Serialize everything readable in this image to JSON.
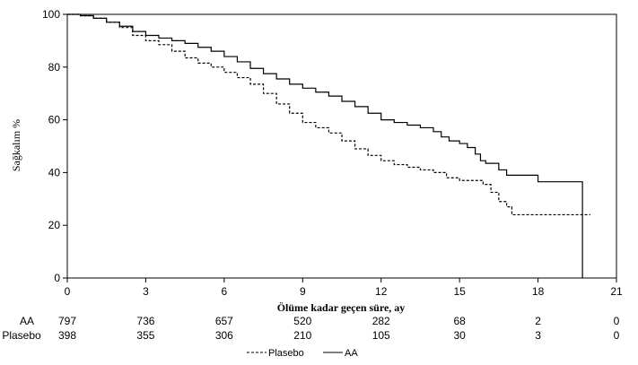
{
  "chart_data": {
    "type": "line",
    "title": "",
    "xlabel": "Ölüme kadar geçen süre, ay",
    "ylabel": "Sağkalım %",
    "xlim": [
      0,
      21
    ],
    "ylim": [
      0,
      100
    ],
    "xticks": [
      0,
      3,
      6,
      9,
      12,
      15,
      18,
      21
    ],
    "yticks": [
      0,
      20,
      40,
      60,
      80,
      100
    ],
    "grid": false,
    "legend": "bottom",
    "series": [
      {
        "name": "AA",
        "style": "solid",
        "color": "#000000",
        "x": [
          0,
          0.5,
          1,
          1.5,
          2,
          2.5,
          3,
          3.5,
          4,
          4.5,
          5,
          5.5,
          6,
          6.5,
          7,
          7.5,
          8,
          8.5,
          9,
          9.5,
          10,
          10.5,
          11,
          11.5,
          12,
          12.5,
          13,
          13.5,
          14,
          14.3,
          14.6,
          15,
          15.3,
          15.6,
          15.8,
          16,
          16.2,
          16.5,
          16.8,
          17,
          18,
          19,
          19.7,
          19.7
        ],
        "y": [
          100,
          99.5,
          98.5,
          97,
          95.5,
          93.5,
          92,
          91,
          90,
          89,
          87.5,
          86,
          84,
          82,
          79.5,
          77.5,
          75.5,
          73.5,
          72,
          70.5,
          69,
          67,
          65,
          62.5,
          60,
          59,
          58,
          57,
          55.5,
          53.5,
          52,
          51,
          49.5,
          47,
          44.5,
          43.5,
          43.5,
          41,
          39,
          39,
          36.5,
          36.5,
          36.5,
          0
        ]
      },
      {
        "name": "Plasebo",
        "style": "dashed",
        "color": "#000000",
        "x": [
          0,
          0.5,
          1,
          1.5,
          2,
          2.5,
          3,
          3.5,
          4,
          4.5,
          5,
          5.5,
          6,
          6.5,
          7,
          7.5,
          8,
          8.5,
          9,
          9.5,
          10,
          10.5,
          11,
          11.5,
          12,
          12.5,
          13,
          13.5,
          14,
          14.5,
          15,
          15.5,
          15.9,
          16.2,
          16.5,
          16.8,
          17,
          18,
          19,
          20
        ],
        "y": [
          100,
          99.5,
          98.5,
          97,
          95,
          92,
          90,
          88.5,
          86,
          83.5,
          81.5,
          80,
          78,
          76,
          73.5,
          70,
          66,
          62.5,
          59,
          57,
          55,
          52,
          49,
          46.5,
          44.5,
          43,
          42,
          41,
          40,
          38,
          37,
          37,
          35.5,
          32.5,
          29,
          27,
          24,
          24,
          24,
          24
        ]
      }
    ],
    "risk_table": {
      "times": [
        0,
        3,
        6,
        9,
        12,
        15,
        18,
        21
      ],
      "rows": [
        {
          "label": "AA",
          "values": [
            "797",
            "736",
            "657",
            "520",
            "282",
            "68",
            "2",
            "0"
          ]
        },
        {
          "label": "Plasebo",
          "values": [
            "398",
            "355",
            "306",
            "210",
            "105",
            "30",
            "3",
            "0"
          ]
        }
      ]
    },
    "legend_entries": [
      {
        "label": "Plasebo",
        "style": "dashed"
      },
      {
        "label": "AA",
        "style": "solid"
      }
    ]
  }
}
